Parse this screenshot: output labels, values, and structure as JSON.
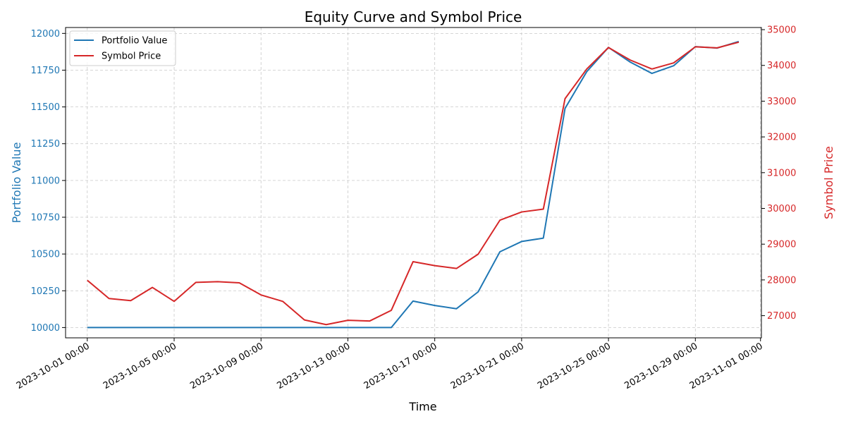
{
  "chart_data": {
    "type": "line",
    "title": "Equity Curve and Symbol Price",
    "xlabel": "Time",
    "ylabel_left": "Portfolio Value",
    "ylabel_right": "Symbol Price",
    "x_range": [
      "2023-09-30T00:00",
      "2023-11-01T01:00"
    ],
    "ylim_left": [
      9930,
      12040
    ],
    "ylim_right": [
      26380,
      35060
    ],
    "yticks_left": [
      10000,
      10250,
      10500,
      10750,
      11000,
      11250,
      11500,
      11750,
      12000
    ],
    "yticks_right": [
      27000,
      28000,
      29000,
      30000,
      31000,
      32000,
      33000,
      34000,
      35000
    ],
    "xticks": [
      "2023-10-01 00:00",
      "2023-10-05 00:00",
      "2023-10-09 00:00",
      "2023-10-13 00:00",
      "2023-10-17 00:00",
      "2023-10-21 00:00",
      "2023-10-25 00:00",
      "2023-10-29 00:00",
      "2023-11-01 00:00"
    ],
    "grid": true,
    "legend_position": "top-left",
    "x": [
      "2023-10-01",
      "2023-10-02",
      "2023-10-03",
      "2023-10-04",
      "2023-10-05",
      "2023-10-06",
      "2023-10-07",
      "2023-10-08",
      "2023-10-09",
      "2023-10-10",
      "2023-10-11",
      "2023-10-12",
      "2023-10-13",
      "2023-10-14",
      "2023-10-15",
      "2023-10-16",
      "2023-10-17",
      "2023-10-18",
      "2023-10-19",
      "2023-10-20",
      "2023-10-21",
      "2023-10-22",
      "2023-10-23",
      "2023-10-24",
      "2023-10-25",
      "2023-10-26",
      "2023-10-27",
      "2023-10-28",
      "2023-10-29",
      "2023-10-30",
      "2023-10-31"
    ],
    "series": [
      {
        "name": "Portfolio Value",
        "axis": "left",
        "color": "#1f77b4",
        "values": [
          10000,
          10000,
          10000,
          10000,
          10000,
          10000,
          10000,
          10000,
          10000,
          10000,
          10000,
          10000,
          10000,
          10000,
          10000,
          10180,
          10150,
          10128,
          10243,
          10515,
          10585,
          10608,
          11490,
          11740,
          11905,
          11805,
          11728,
          11780,
          11910,
          11900,
          11945
        ]
      },
      {
        "name": "Symbol Price",
        "axis": "right",
        "color": "#d62728",
        "values": [
          27990,
          27480,
          27420,
          27790,
          27400,
          27930,
          27950,
          27920,
          27580,
          27400,
          26880,
          26750,
          26870,
          26850,
          27150,
          28510,
          28400,
          28320,
          28720,
          29670,
          29900,
          29980,
          33070,
          33900,
          34500,
          34150,
          33900,
          34070,
          34520,
          34490,
          34650
        ]
      }
    ]
  },
  "colors": {
    "left_axis": "#1f77b4",
    "right_axis": "#d62728",
    "grid": "#c8c8c8"
  }
}
